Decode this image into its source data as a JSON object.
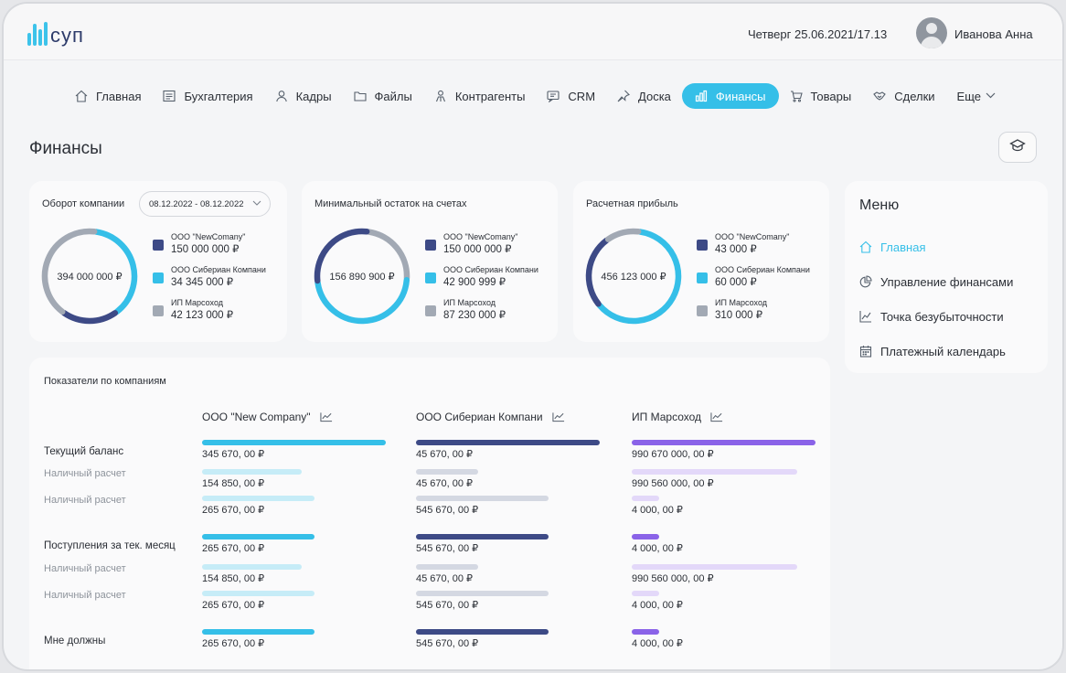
{
  "app": {
    "logo_text": "суп",
    "datetime": "Четверг 25.06.2021/17.13",
    "user_name": "Иванова Анна"
  },
  "nav": {
    "items": [
      {
        "label": "Главная",
        "icon": "home-icon"
      },
      {
        "label": "Бухгалтерия",
        "icon": "ledger-icon"
      },
      {
        "label": "Кадры",
        "icon": "person-icon"
      },
      {
        "label": "Файлы",
        "icon": "folder-icon"
      },
      {
        "label": "Контрагенты",
        "icon": "contractor-icon"
      },
      {
        "label": "CRM",
        "icon": "chat-icon"
      },
      {
        "label": "Доска",
        "icon": "pin-icon"
      },
      {
        "label": "Финансы",
        "icon": "chart-bar-icon",
        "active": true
      },
      {
        "label": "Товары",
        "icon": "cart-icon"
      },
      {
        "label": "Сделки",
        "icon": "handshake-icon"
      },
      {
        "label": "Еще",
        "icon": "chevron-down-icon"
      }
    ]
  },
  "page": {
    "title": "Финансы"
  },
  "cards": [
    {
      "title": "Оборот компании",
      "date_range": "08.12.2022 - 08.12.2022",
      "center_value": "394 000 000 ₽",
      "legend": [
        {
          "name": "ООО \"NewComany\"",
          "value": "150 000 000 ₽",
          "color": "#3d4a86"
        },
        {
          "name": "ООО Сибериан Компани",
          "value": "34 345 000 ₽",
          "color": "#35bfe8"
        },
        {
          "name": "ИП Марсоход",
          "value": "42 123 000 ₽",
          "color": "#a2a9b4"
        }
      ],
      "segments": [
        {
          "color": "#35bfe8",
          "fraction": 0.38
        },
        {
          "color": "#3d4a86",
          "fraction": 0.2
        },
        {
          "color": "#a2a9b4",
          "fraction": 0.42
        }
      ]
    },
    {
      "title": "Минимальный остаток на счетах",
      "center_value": "156 890 900 ₽",
      "legend": [
        {
          "name": "ООО \"NewComany\"",
          "value": "150 000 000 ₽",
          "color": "#3d4a86"
        },
        {
          "name": "ООО Сибериан Компани",
          "value": "42 900 999 ₽",
          "color": "#35bfe8"
        },
        {
          "name": "ИП Марсоход",
          "value": "87 230 000 ₽",
          "color": "#a2a9b4"
        }
      ],
      "segments": [
        {
          "color": "#a2a9b4",
          "fraction": 0.24
        },
        {
          "color": "#35bfe8",
          "fraction": 0.47
        },
        {
          "color": "#3d4a86",
          "fraction": 0.29
        }
      ]
    },
    {
      "title": "Расчетная прибыль",
      "center_value": "456 123 000 ₽",
      "legend": [
        {
          "name": "ООО \"NewComany\"",
          "value": "43 000 ₽",
          "color": "#3d4a86"
        },
        {
          "name": "ООО Сибериан Компани",
          "value": "60 000 ₽",
          "color": "#35bfe8"
        },
        {
          "name": "ИП Марсоход",
          "value": "310 000 ₽",
          "color": "#a2a9b4"
        }
      ],
      "segments": [
        {
          "color": "#35bfe8",
          "fraction": 0.62
        },
        {
          "color": "#3d4a86",
          "fraction": 0.26
        },
        {
          "color": "#a2a9b4",
          "fraction": 0.12
        }
      ]
    }
  ],
  "menu": {
    "title": "Меню",
    "items": [
      {
        "label": "Главная",
        "icon": "home-icon",
        "active": true
      },
      {
        "label": "Управление финансами",
        "icon": "pie-chart-icon"
      },
      {
        "label": "Точка безубыточности",
        "icon": "line-chart-icon"
      },
      {
        "label": "Платежный календарь",
        "icon": "calendar-icon"
      }
    ]
  },
  "indicators": {
    "title": "Показатели по компаниям",
    "companies": [
      {
        "name": "ООО \"New Company\"",
        "color": "#35bfe8",
        "light_color": "#c6ecf7"
      },
      {
        "name": "ООО Сибериан Компани",
        "color": "#3d4a86",
        "light_color": "#d4d8e2"
      },
      {
        "name": "ИП Марсоход",
        "color": "#8a63e8",
        "light_color": "#e3d8f9"
      }
    ],
    "rows": [
      {
        "label": "Текущий баланс",
        "sub": false,
        "values": [
          "345 670, 00 ₽",
          "45 670, 00 ₽",
          "990 670 000, 00 ₽"
        ],
        "levels": [
          1.0,
          1.0,
          1.0
        ]
      },
      {
        "label": "Наличный расчет",
        "sub": true,
        "values": [
          "154 850, 00 ₽",
          "45 670, 00 ₽",
          "990 560 000, 00 ₽"
        ],
        "levels": [
          0.54,
          0.34,
          0.9
        ]
      },
      {
        "label": "Наличный расчет",
        "sub": true,
        "values": [
          "265 670, 00 ₽",
          "545 670, 00 ₽",
          "4 000, 00 ₽"
        ],
        "levels": [
          0.61,
          0.72,
          0.15
        ]
      },
      {
        "label": "Поступления за тек. месяц",
        "sub": false,
        "values": [
          "265 670, 00 ₽",
          "545 670, 00 ₽",
          "4 000, 00 ₽"
        ],
        "levels": [
          0.61,
          0.72,
          0.15
        ]
      },
      {
        "label": "Наличный расчет",
        "sub": true,
        "values": [
          "154 850, 00 ₽",
          "45 670, 00 ₽",
          "990 560 000, 00 ₽"
        ],
        "levels": [
          0.54,
          0.34,
          0.9
        ]
      },
      {
        "label": "Наличный расчет",
        "sub": true,
        "values": [
          "265 670, 00 ₽",
          "545 670, 00 ₽",
          "4 000, 00 ₽"
        ],
        "levels": [
          0.61,
          0.72,
          0.15
        ]
      },
      {
        "label": "Мне должны",
        "sub": false,
        "values": [
          "265 670, 00 ₽",
          "545 670, 00 ₽",
          "4 000, 00 ₽"
        ],
        "levels": [
          0.61,
          0.72,
          0.15
        ]
      }
    ]
  }
}
